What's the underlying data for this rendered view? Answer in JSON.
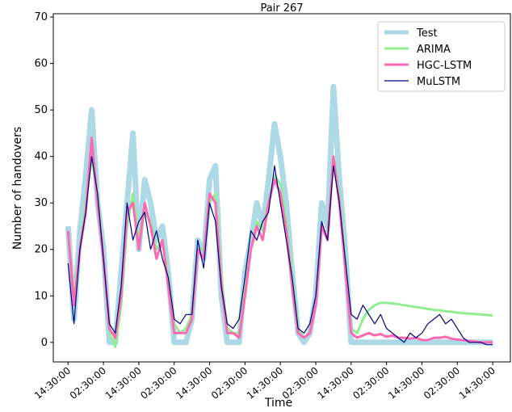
{
  "chart_data": {
    "type": "line",
    "title": "Pair 267",
    "x_label": "Time",
    "y_label": "Number of handovers",
    "x": [
      0,
      2,
      4,
      6,
      8,
      10,
      12,
      14,
      16,
      18,
      20,
      22,
      24,
      26,
      28,
      30,
      32,
      34,
      36,
      38,
      40,
      42,
      44,
      46,
      48,
      50,
      52,
      54,
      56,
      58,
      60,
      62,
      64,
      66,
      68,
      70,
      72,
      74,
      76,
      78,
      80,
      82,
      84,
      86,
      88,
      90,
      92,
      94,
      96,
      98,
      100,
      102,
      104,
      106,
      108,
      110,
      112,
      114,
      116,
      118,
      120,
      122,
      124,
      126,
      128,
      130,
      132,
      134,
      136,
      138,
      140,
      142,
      144
    ],
    "xlim": [
      -5,
      150
    ],
    "xticks": [
      {
        "value": 0,
        "label": "14:30:00"
      },
      {
        "value": 12,
        "label": "02:30:00"
      },
      {
        "value": 24,
        "label": "14:30:00"
      },
      {
        "value": 36,
        "label": "02:30:00"
      },
      {
        "value": 48,
        "label": "14:30:00"
      },
      {
        "value": 60,
        "label": "02:30:00"
      },
      {
        "value": 72,
        "label": "14:30:00"
      },
      {
        "value": 84,
        "label": "02:30:00"
      },
      {
        "value": 96,
        "label": "14:30:00"
      },
      {
        "value": 108,
        "label": "02:30:00"
      },
      {
        "value": 120,
        "label": "14:30:00"
      },
      {
        "value": 132,
        "label": "02:30:00"
      },
      {
        "value": 144,
        "label": "14:30:00"
      }
    ],
    "ylim": [
      -4.2,
      70.7
    ],
    "yticks": [
      0,
      10,
      20,
      30,
      40,
      50,
      60,
      70
    ],
    "legend": "upper right",
    "series": [
      {
        "name": "Test",
        "color": "#add8e6",
        "width": 7,
        "values": [
          25,
          5,
          24,
          36,
          50,
          30,
          20,
          0,
          0,
          15,
          30,
          45,
          20,
          35,
          30,
          22,
          25,
          15,
          0,
          0,
          0,
          5,
          22,
          18,
          35,
          38,
          10,
          0,
          0,
          0,
          15,
          22,
          30,
          25,
          35,
          47,
          40,
          30,
          15,
          2,
          0,
          2,
          10,
          30,
          25,
          55,
          35,
          20,
          0,
          0,
          0,
          0,
          0,
          0,
          0,
          0,
          0,
          0,
          0,
          0,
          0,
          0,
          0,
          0,
          0,
          0,
          0,
          0,
          0,
          0,
          0,
          0,
          0
        ]
      },
      {
        "name": "ARIMA",
        "color": "#90ee90",
        "width": 3,
        "values": [
          22,
          10,
          20,
          30,
          40,
          32,
          18,
          2,
          -1,
          8,
          25,
          32,
          22,
          28,
          26,
          20,
          22,
          14,
          4,
          2,
          3,
          6,
          20,
          20,
          30,
          32,
          14,
          3,
          2,
          2,
          12,
          20,
          26,
          24,
          30,
          36,
          34,
          26,
          14,
          3,
          1,
          2,
          8,
          24,
          24,
          40,
          32,
          18,
          3,
          2,
          5,
          7,
          8,
          8.5,
          8.5,
          8.4,
          8.2,
          8,
          7.8,
          7.6,
          7.4,
          7.2,
          7,
          6.9,
          6.7,
          6.6,
          6.4,
          6.3,
          6.2,
          6.1,
          6,
          5.9,
          5.8
        ]
      },
      {
        "name": "HGC-LSTM",
        "color": "#ff69b4",
        "width": 3,
        "values": [
          24,
          8,
          20,
          28,
          44,
          30,
          18,
          3,
          1,
          10,
          28,
          30,
          20,
          30,
          25,
          18,
          22,
          12,
          2,
          2,
          2,
          5,
          20,
          18,
          32,
          30,
          12,
          2,
          2,
          1,
          10,
          20,
          25,
          22,
          30,
          35,
          32,
          24,
          12,
          2,
          1,
          2,
          8,
          25,
          22,
          40,
          30,
          16,
          2,
          1,
          1.5,
          2,
          1.5,
          1.8,
          1.2,
          1.5,
          1,
          1,
          0.8,
          1,
          0.5,
          0.5,
          1,
          1,
          1.2,
          0.8,
          0.6,
          0.5,
          0.3,
          0.2,
          0,
          0,
          0
        ]
      },
      {
        "name": "MuLSTM",
        "color": "#000080",
        "width": 1.2,
        "values": [
          17,
          4,
          20,
          28,
          40,
          32,
          18,
          4,
          2,
          12,
          30,
          22,
          26,
          28,
          20,
          24,
          18,
          14,
          5,
          4,
          6,
          6,
          22,
          16,
          30,
          26,
          12,
          4,
          3,
          5,
          14,
          24,
          22,
          26,
          28,
          38,
          30,
          22,
          14,
          3,
          2,
          4,
          10,
          26,
          22,
          38,
          30,
          18,
          6,
          5,
          8,
          6,
          4,
          6,
          3,
          2,
          1,
          0,
          2,
          1,
          2,
          4,
          5,
          6,
          4,
          5,
          3,
          1,
          0,
          0,
          0,
          -0.5,
          -0.5
        ]
      }
    ]
  }
}
